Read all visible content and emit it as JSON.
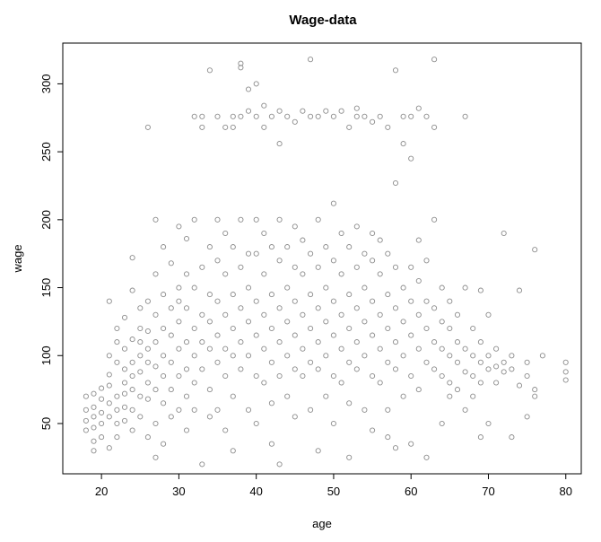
{
  "chart_data": {
    "type": "scatter",
    "title": "Wage-data",
    "xlabel": "age",
    "ylabel": "wage",
    "xlim": [
      15,
      82
    ],
    "ylim": [
      13,
      330
    ],
    "x_ticks": [
      20,
      30,
      40,
      50,
      60,
      70,
      80
    ],
    "y_ticks": [
      50,
      100,
      150,
      200,
      250,
      300
    ],
    "grid": false,
    "legend": "none",
    "point_color": "#8c8c8c",
    "points": [
      [
        18,
        70
      ],
      [
        18,
        60
      ],
      [
        18,
        52
      ],
      [
        18,
        45
      ],
      [
        19,
        72
      ],
      [
        19,
        62
      ],
      [
        19,
        55
      ],
      [
        19,
        47
      ],
      [
        19,
        30
      ],
      [
        19,
        37
      ],
      [
        20,
        68
      ],
      [
        20,
        58
      ],
      [
        20,
        76
      ],
      [
        20,
        50
      ],
      [
        20,
        40
      ],
      [
        21,
        65
      ],
      [
        21,
        78
      ],
      [
        21,
        55
      ],
      [
        21,
        100
      ],
      [
        21,
        140
      ],
      [
        21,
        86
      ],
      [
        21,
        32
      ],
      [
        22,
        70
      ],
      [
        22,
        95
      ],
      [
        22,
        60
      ],
      [
        22,
        110
      ],
      [
        22,
        50
      ],
      [
        22,
        120
      ],
      [
        22,
        40
      ],
      [
        23,
        80
      ],
      [
        23,
        72
      ],
      [
        23,
        105
      ],
      [
        23,
        62
      ],
      [
        23,
        128
      ],
      [
        23,
        90
      ],
      [
        23,
        52
      ],
      [
        24,
        85
      ],
      [
        24,
        75
      ],
      [
        24,
        112
      ],
      [
        24,
        148
      ],
      [
        24,
        172
      ],
      [
        24,
        95
      ],
      [
        24,
        60
      ],
      [
        24,
        45
      ],
      [
        25,
        100
      ],
      [
        25,
        88
      ],
      [
        25,
        120
      ],
      [
        25,
        70
      ],
      [
        25,
        135
      ],
      [
        25,
        55
      ],
      [
        25,
        110
      ],
      [
        26,
        118
      ],
      [
        26,
        95
      ],
      [
        26,
        80
      ],
      [
        26,
        140
      ],
      [
        26,
        105
      ],
      [
        26,
        68
      ],
      [
        26,
        268
      ],
      [
        26,
        40
      ],
      [
        27,
        110
      ],
      [
        27,
        130
      ],
      [
        27,
        92
      ],
      [
        27,
        200
      ],
      [
        27,
        160
      ],
      [
        27,
        75
      ],
      [
        27,
        50
      ],
      [
        27,
        25
      ],
      [
        28,
        120
      ],
      [
        28,
        100
      ],
      [
        28,
        145
      ],
      [
        28,
        180
      ],
      [
        28,
        85
      ],
      [
        28,
        65
      ],
      [
        28,
        35
      ],
      [
        29,
        115
      ],
      [
        29,
        135
      ],
      [
        29,
        95
      ],
      [
        29,
        168
      ],
      [
        29,
        75
      ],
      [
        29,
        55
      ],
      [
        30,
        125
      ],
      [
        30,
        105
      ],
      [
        30,
        150
      ],
      [
        30,
        195
      ],
      [
        30,
        85
      ],
      [
        30,
        60
      ],
      [
        30,
        140
      ],
      [
        31,
        110
      ],
      [
        31,
        135
      ],
      [
        31,
        160
      ],
      [
        31,
        90
      ],
      [
        31,
        70
      ],
      [
        31,
        45
      ],
      [
        31,
        186
      ],
      [
        32,
        120
      ],
      [
        32,
        100
      ],
      [
        32,
        150
      ],
      [
        32,
        276
      ],
      [
        32,
        80
      ],
      [
        32,
        60
      ],
      [
        32,
        200
      ],
      [
        33,
        130
      ],
      [
        33,
        110
      ],
      [
        33,
        165
      ],
      [
        33,
        276
      ],
      [
        33,
        268
      ],
      [
        33,
        90
      ],
      [
        33,
        20
      ],
      [
        34,
        125
      ],
      [
        34,
        145
      ],
      [
        34,
        105
      ],
      [
        34,
        180
      ],
      [
        34,
        310
      ],
      [
        34,
        75
      ],
      [
        34,
        55
      ],
      [
        35,
        140
      ],
      [
        35,
        115
      ],
      [
        35,
        170
      ],
      [
        35,
        276
      ],
      [
        35,
        95
      ],
      [
        35,
        200
      ],
      [
        35,
        60
      ],
      [
        36,
        130
      ],
      [
        36,
        105
      ],
      [
        36,
        160
      ],
      [
        36,
        268
      ],
      [
        36,
        85
      ],
      [
        36,
        190
      ],
      [
        36,
        45
      ],
      [
        37,
        120
      ],
      [
        37,
        145
      ],
      [
        37,
        100
      ],
      [
        37,
        180
      ],
      [
        37,
        276
      ],
      [
        37,
        268
      ],
      [
        37,
        70
      ],
      [
        37,
        30
      ],
      [
        38,
        135
      ],
      [
        38,
        110
      ],
      [
        38,
        165
      ],
      [
        38,
        315
      ],
      [
        38,
        312
      ],
      [
        38,
        276
      ],
      [
        38,
        90
      ],
      [
        38,
        200
      ],
      [
        39,
        125
      ],
      [
        39,
        150
      ],
      [
        39,
        100
      ],
      [
        39,
        296
      ],
      [
        39,
        280
      ],
      [
        39,
        175
      ],
      [
        39,
        60
      ],
      [
        40,
        140
      ],
      [
        40,
        115
      ],
      [
        40,
        175
      ],
      [
        40,
        300
      ],
      [
        40,
        276
      ],
      [
        40,
        85
      ],
      [
        40,
        200
      ],
      [
        40,
        50
      ],
      [
        41,
        130
      ],
      [
        41,
        105
      ],
      [
        41,
        160
      ],
      [
        41,
        284
      ],
      [
        41,
        268
      ],
      [
        41,
        80
      ],
      [
        41,
        190
      ],
      [
        42,
        120
      ],
      [
        42,
        145
      ],
      [
        42,
        95
      ],
      [
        42,
        276
      ],
      [
        42,
        180
      ],
      [
        42,
        65
      ],
      [
        42,
        35
      ],
      [
        43,
        135
      ],
      [
        43,
        110
      ],
      [
        43,
        170
      ],
      [
        43,
        280
      ],
      [
        43,
        256
      ],
      [
        43,
        85
      ],
      [
        43,
        200
      ],
      [
        43,
        20
      ],
      [
        44,
        125
      ],
      [
        44,
        150
      ],
      [
        44,
        100
      ],
      [
        44,
        276
      ],
      [
        44,
        180
      ],
      [
        44,
        70
      ],
      [
        45,
        140
      ],
      [
        45,
        115
      ],
      [
        45,
        165
      ],
      [
        45,
        272
      ],
      [
        45,
        90
      ],
      [
        45,
        195
      ],
      [
        45,
        55
      ],
      [
        46,
        130
      ],
      [
        46,
        105
      ],
      [
        46,
        160
      ],
      [
        46,
        280
      ],
      [
        46,
        85
      ],
      [
        46,
        185
      ],
      [
        47,
        120
      ],
      [
        47,
        145
      ],
      [
        47,
        95
      ],
      [
        47,
        318
      ],
      [
        47,
        276
      ],
      [
        47,
        175
      ],
      [
        47,
        60
      ],
      [
        48,
        135
      ],
      [
        48,
        110
      ],
      [
        48,
        165
      ],
      [
        48,
        276
      ],
      [
        48,
        90
      ],
      [
        48,
        200
      ],
      [
        48,
        30
      ],
      [
        49,
        125
      ],
      [
        49,
        150
      ],
      [
        49,
        100
      ],
      [
        49,
        280
      ],
      [
        49,
        180
      ],
      [
        49,
        70
      ],
      [
        50,
        140
      ],
      [
        50,
        115
      ],
      [
        50,
        170
      ],
      [
        50,
        276
      ],
      [
        50,
        212
      ],
      [
        50,
        85
      ],
      [
        50,
        50
      ],
      [
        51,
        130
      ],
      [
        51,
        105
      ],
      [
        51,
        160
      ],
      [
        51,
        280
      ],
      [
        51,
        190
      ],
      [
        51,
        80
      ],
      [
        52,
        120
      ],
      [
        52,
        145
      ],
      [
        52,
        95
      ],
      [
        52,
        268
      ],
      [
        52,
        180
      ],
      [
        52,
        65
      ],
      [
        52,
        25
      ],
      [
        53,
        135
      ],
      [
        53,
        110
      ],
      [
        53,
        165
      ],
      [
        53,
        282
      ],
      [
        53,
        276
      ],
      [
        53,
        90
      ],
      [
        53,
        195
      ],
      [
        54,
        125
      ],
      [
        54,
        150
      ],
      [
        54,
        100
      ],
      [
        54,
        276
      ],
      [
        54,
        175
      ],
      [
        54,
        60
      ],
      [
        55,
        140
      ],
      [
        55,
        115
      ],
      [
        55,
        170
      ],
      [
        55,
        272
      ],
      [
        55,
        85
      ],
      [
        55,
        190
      ],
      [
        55,
        45
      ],
      [
        56,
        130
      ],
      [
        56,
        105
      ],
      [
        56,
        160
      ],
      [
        56,
        276
      ],
      [
        56,
        80
      ],
      [
        56,
        185
      ],
      [
        57,
        120
      ],
      [
        57,
        145
      ],
      [
        57,
        95
      ],
      [
        57,
        268
      ],
      [
        57,
        175
      ],
      [
        57,
        60
      ],
      [
        57,
        40
      ],
      [
        58,
        135
      ],
      [
        58,
        110
      ],
      [
        58,
        165
      ],
      [
        58,
        310
      ],
      [
        58,
        227
      ],
      [
        58,
        90
      ],
      [
        58,
        32
      ],
      [
        59,
        125
      ],
      [
        59,
        150
      ],
      [
        59,
        100
      ],
      [
        59,
        276
      ],
      [
        59,
        256
      ],
      [
        59,
        70
      ],
      [
        60,
        140
      ],
      [
        60,
        115
      ],
      [
        60,
        165
      ],
      [
        60,
        245
      ],
      [
        60,
        276
      ],
      [
        60,
        85
      ],
      [
        60,
        35
      ],
      [
        61,
        130
      ],
      [
        61,
        105
      ],
      [
        61,
        155
      ],
      [
        61,
        282
      ],
      [
        61,
        75
      ],
      [
        61,
        185
      ],
      [
        62,
        120
      ],
      [
        62,
        140
      ],
      [
        62,
        95
      ],
      [
        62,
        276
      ],
      [
        62,
        170
      ],
      [
        62,
        25
      ],
      [
        63,
        110
      ],
      [
        63,
        135
      ],
      [
        63,
        318
      ],
      [
        63,
        268
      ],
      [
        63,
        90
      ],
      [
        63,
        200
      ],
      [
        64,
        105
      ],
      [
        64,
        125
      ],
      [
        64,
        85
      ],
      [
        64,
        150
      ],
      [
        64,
        50
      ],
      [
        65,
        100
      ],
      [
        65,
        120
      ],
      [
        65,
        80
      ],
      [
        65,
        140
      ],
      [
        65,
        70
      ],
      [
        66,
        110
      ],
      [
        66,
        95
      ],
      [
        66,
        130
      ],
      [
        66,
        75
      ],
      [
        67,
        105
      ],
      [
        67,
        88
      ],
      [
        67,
        276
      ],
      [
        67,
        150
      ],
      [
        67,
        60
      ],
      [
        68,
        100
      ],
      [
        68,
        85
      ],
      [
        68,
        120
      ],
      [
        68,
        70
      ],
      [
        69,
        95
      ],
      [
        69,
        110
      ],
      [
        69,
        80
      ],
      [
        69,
        148
      ],
      [
        69,
        40
      ],
      [
        70,
        100
      ],
      [
        70,
        90
      ],
      [
        70,
        130
      ],
      [
        70,
        50
      ],
      [
        71,
        105
      ],
      [
        71,
        92
      ],
      [
        71,
        80
      ],
      [
        72,
        190
      ],
      [
        72,
        95
      ],
      [
        72,
        88
      ],
      [
        73,
        90
      ],
      [
        73,
        100
      ],
      [
        73,
        40
      ],
      [
        74,
        148
      ],
      [
        74,
        78
      ],
      [
        75,
        95
      ],
      [
        75,
        85
      ],
      [
        75,
        55
      ],
      [
        76,
        178
      ],
      [
        76,
        75
      ],
      [
        76,
        70
      ],
      [
        77,
        100
      ],
      [
        80,
        95
      ],
      [
        80,
        88
      ],
      [
        80,
        82
      ]
    ]
  }
}
